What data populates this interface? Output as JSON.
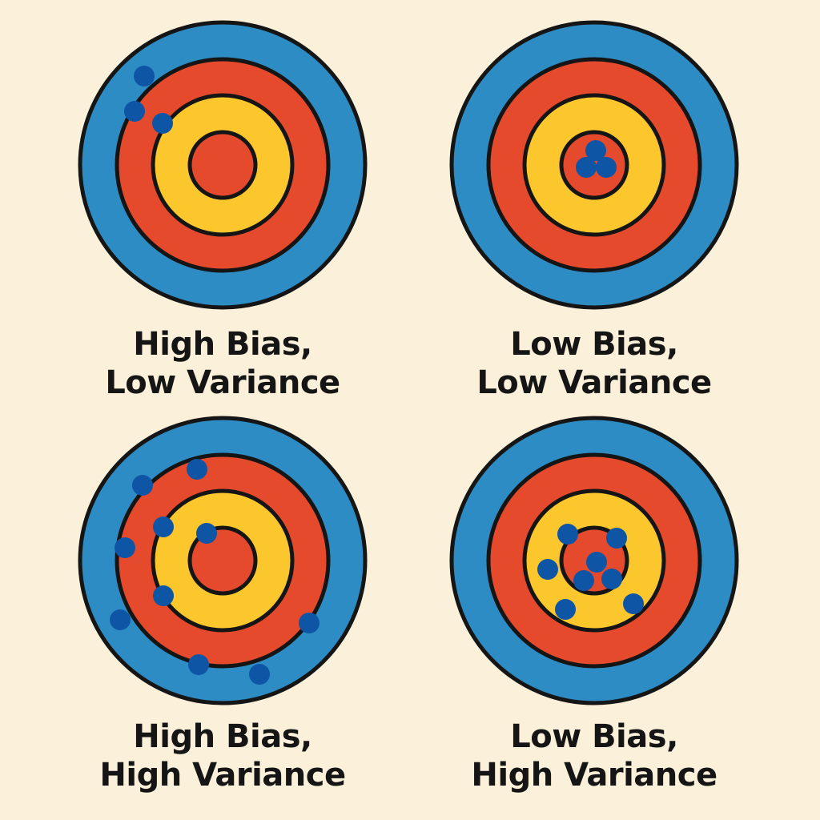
{
  "colors": {
    "background": "#fbf0d9",
    "outer_ring": "#2e8cc4",
    "middle_ring": "#e64a2c",
    "inner_ring": "#fcc72c",
    "bullseye": "#e64a2c",
    "ring_outline": "#151515",
    "shot": "#0e55a6",
    "caption_text": "#151515"
  },
  "panels": [
    {
      "caption_line1": "High Bias,",
      "caption_line2": "Low Variance",
      "shots": [
        [
          -98,
          -111
        ],
        [
          -110,
          -67
        ],
        [
          -75,
          -52
        ]
      ]
    },
    {
      "caption_line1": "Low Bias,",
      "caption_line2": "Low Variance",
      "shots": [
        [
          2,
          -18
        ],
        [
          -10,
          3
        ],
        [
          15,
          3
        ]
      ]
    },
    {
      "caption_line1": "High Bias,",
      "caption_line2": "High Variance",
      "shots": [
        [
          -32,
          -114
        ],
        [
          -100,
          -94
        ],
        [
          -74,
          -42
        ],
        [
          -20,
          -34
        ],
        [
          -122,
          -16
        ],
        [
          -74,
          44
        ],
        [
          -128,
          74
        ],
        [
          108,
          78
        ],
        [
          -30,
          130
        ],
        [
          46,
          142
        ]
      ]
    },
    {
      "caption_line1": "Low Bias,",
      "caption_line2": "High Variance",
      "shots": [
        [
          -33,
          -33
        ],
        [
          28,
          -28
        ],
        [
          3,
          2
        ],
        [
          -58,
          11
        ],
        [
          -13,
          25
        ],
        [
          22,
          23
        ],
        [
          -36,
          61
        ],
        [
          49,
          54
        ]
      ]
    }
  ]
}
